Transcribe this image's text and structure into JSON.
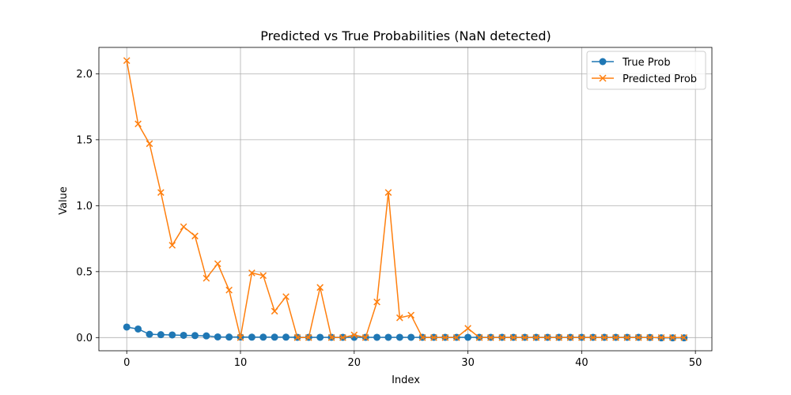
{
  "chart_data": {
    "type": "line",
    "title": "Predicted vs True Probabilities (NaN detected)",
    "xlabel": "Index",
    "ylabel": "Value",
    "xlim": [
      -2.45,
      51.45
    ],
    "ylim": [
      -0.1,
      2.2
    ],
    "x_ticks": [
      0,
      10,
      20,
      30,
      40,
      50
    ],
    "y_ticks": [
      0.0,
      0.5,
      1.0,
      1.5,
      2.0
    ],
    "x_tick_labels": [
      "0",
      "10",
      "20",
      "30",
      "40",
      "50"
    ],
    "y_tick_labels": [
      "0.0",
      "0.5",
      "1.0",
      "1.5",
      "2.0"
    ],
    "grid": true,
    "legend_position": "top-right",
    "x": [
      0,
      1,
      2,
      3,
      4,
      5,
      6,
      7,
      8,
      9,
      10,
      11,
      12,
      13,
      14,
      15,
      16,
      17,
      18,
      19,
      20,
      21,
      22,
      23,
      24,
      25,
      26,
      27,
      28,
      29,
      30,
      31,
      32,
      33,
      34,
      35,
      36,
      37,
      38,
      39,
      40,
      41,
      42,
      43,
      44,
      45,
      46,
      47,
      48,
      49
    ],
    "series": [
      {
        "name": "True Prob",
        "color": "#1f77b4",
        "marker": "circle",
        "values": [
          0.08,
          0.065,
          0.025,
          0.022,
          0.02,
          0.017,
          0.015,
          0.013,
          0.005,
          0.004,
          0.004,
          0.003,
          0.003,
          0.003,
          0.003,
          0.002,
          0.002,
          0.002,
          0.002,
          0.002,
          0.002,
          0.002,
          0.002,
          0.002,
          0.002,
          0.002,
          0.002,
          0.002,
          0.002,
          0.002,
          0.002,
          0.002,
          0.002,
          0.002,
          0.002,
          0.002,
          0.002,
          0.002,
          0.002,
          0.002,
          0.002,
          0.002,
          0.002,
          0.002,
          0.002,
          0.002,
          0.001,
          -0.002,
          -0.002,
          -0.002
        ]
      },
      {
        "name": "Predicted Prob",
        "color": "#ff7f0e",
        "marker": "x",
        "values": [
          2.1,
          1.62,
          1.47,
          1.1,
          0.7,
          0.84,
          0.77,
          0.45,
          0.56,
          0.36,
          0.0,
          0.49,
          0.47,
          0.2,
          0.31,
          0.0,
          0.0,
          0.38,
          0.0,
          0.0,
          0.02,
          0.0,
          0.27,
          1.1,
          0.15,
          0.17,
          0.0,
          0.0,
          0.0,
          0.0,
          0.07,
          0.0,
          0.0,
          0.0,
          0.0,
          0.0,
          0.0,
          0.0,
          0.0,
          0.0,
          0.0,
          0.0,
          0.0,
          0.0,
          0.0,
          0.0,
          0.0,
          0.0,
          0.0,
          0.0
        ]
      }
    ]
  }
}
